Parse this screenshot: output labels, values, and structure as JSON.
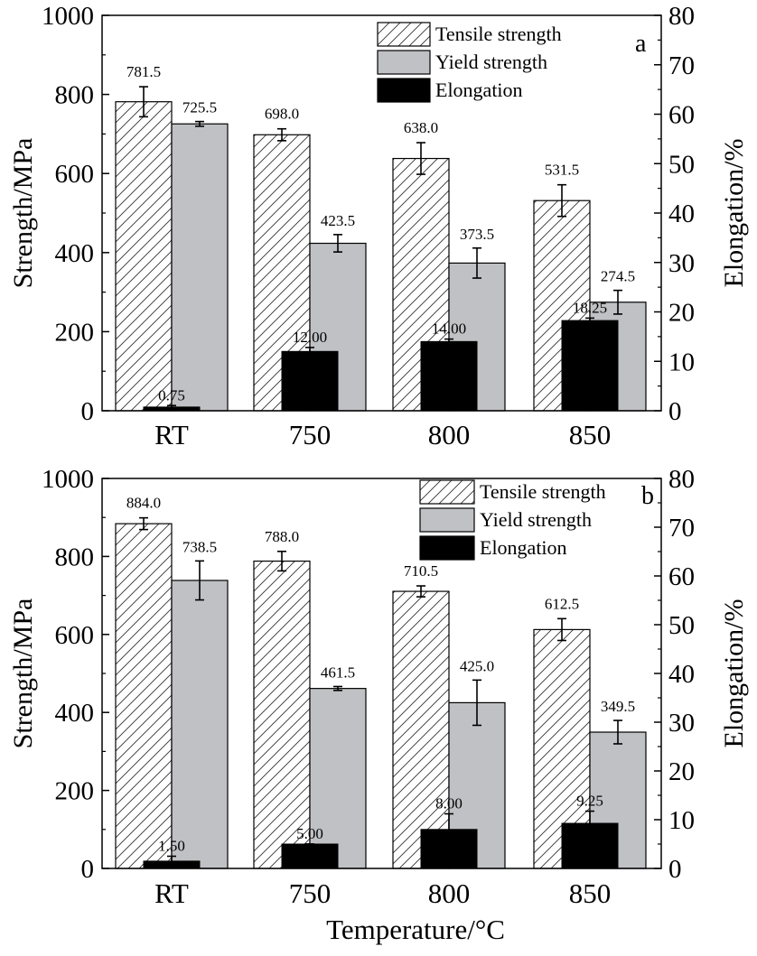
{
  "chart_data": [
    {
      "type": "bar",
      "panel_label": "a",
      "categories": [
        "RT",
        "750",
        "800",
        "850"
      ],
      "ylabel": "Strength/MPa",
      "y2label": "Elongation/%",
      "ylim": [
        0,
        1000
      ],
      "y2lim": [
        0,
        80
      ],
      "yticks": [
        "0",
        "200",
        "400",
        "600",
        "800",
        "1000"
      ],
      "y2ticks": [
        "0",
        "10",
        "20",
        "30",
        "40",
        "50",
        "60",
        "70",
        "80"
      ],
      "legend_position": "top-right",
      "series": [
        {
          "name": "Tensile strength",
          "axis": "left",
          "pattern": "hatch",
          "values": [
            781.5,
            698.0,
            638.0,
            531.5
          ],
          "labels": [
            "781.5",
            "698.0",
            "638.0",
            "531.5"
          ],
          "errors": [
            38,
            15,
            40,
            40
          ]
        },
        {
          "name": "Yield strength",
          "axis": "left",
          "color": "#bfc1c4",
          "values": [
            725.5,
            423.5,
            373.5,
            274.5
          ],
          "labels": [
            "725.5",
            "423.5",
            "373.5",
            "274.5"
          ],
          "errors": [
            6,
            22,
            38,
            30
          ]
        },
        {
          "name": "Elongation",
          "axis": "right",
          "color": "#000000",
          "values": [
            0.75,
            12.0,
            14.0,
            18.25
          ],
          "labels": [
            "0.75",
            "12.00",
            "14.00",
            "18.25"
          ],
          "errors": [
            0.3,
            0.8,
            0.5,
            0.5
          ]
        }
      ]
    },
    {
      "type": "bar",
      "panel_label": "b",
      "categories": [
        "RT",
        "750",
        "800",
        "850"
      ],
      "xlabel": "Temperature/°C",
      "ylabel": "Strength/MPa",
      "y2label": "Elongation/%",
      "ylim": [
        0,
        1000
      ],
      "y2lim": [
        0,
        80
      ],
      "yticks": [
        "0",
        "200",
        "400",
        "600",
        "800",
        "1000"
      ],
      "y2ticks": [
        "0",
        "10",
        "20",
        "30",
        "40",
        "50",
        "60",
        "70",
        "80"
      ],
      "legend_position": "top-right",
      "series": [
        {
          "name": "Tensile strength",
          "axis": "left",
          "pattern": "hatch",
          "values": [
            884.0,
            788.0,
            710.5,
            612.5
          ],
          "labels": [
            "884.0",
            "788.0",
            "710.5",
            "612.5"
          ],
          "errors": [
            15,
            25,
            14,
            28
          ]
        },
        {
          "name": "Yield strength",
          "axis": "left",
          "color": "#bfc1c4",
          "values": [
            738.5,
            461.5,
            425.0,
            349.5
          ],
          "labels": [
            "738.5",
            "461.5",
            "425.0",
            "349.5"
          ],
          "errors": [
            50,
            5,
            58,
            30
          ]
        },
        {
          "name": "Elongation",
          "axis": "right",
          "color": "#000000",
          "values": [
            1.5,
            5.0,
            8.0,
            9.25
          ],
          "labels": [
            "1.50",
            "5.00",
            "8.00",
            "9.25"
          ],
          "errors": [
            1.0,
            0.0,
            3.2,
            2.5
          ]
        }
      ]
    }
  ]
}
